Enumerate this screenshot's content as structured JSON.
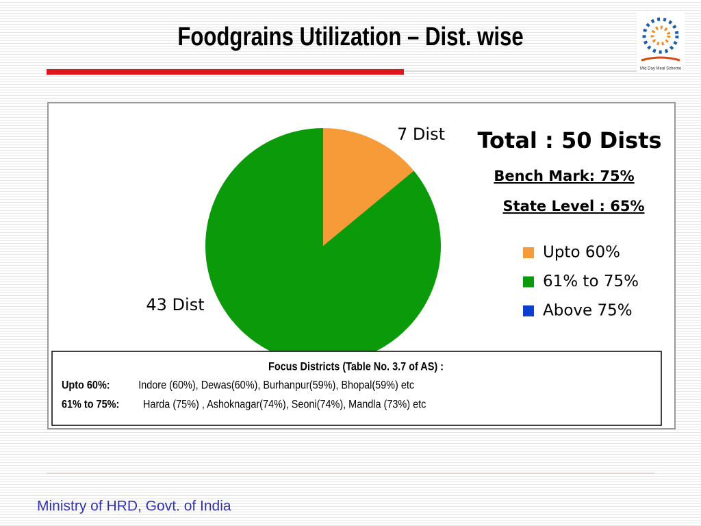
{
  "slide": {
    "title": "Foodgrains Utilization – Dist. wise",
    "logo_text": "Mid Day Meal Scheme",
    "footer": "Ministry of HRD, Govt. of India"
  },
  "chart_data": {
    "type": "pie",
    "categories": [
      "Upto  60%",
      "61% to 75%",
      "Above 75%"
    ],
    "values": [
      7,
      43,
      0
    ],
    "value_labels": [
      "7 Dist",
      "43 Dist",
      null
    ],
    "colors": [
      "#f79a38",
      "#0a9a0a",
      "#0b3fd1"
    ],
    "annotations": [
      "Total : 50 Dists",
      "Bench Mark: 75%",
      "State Level : 65%"
    ]
  },
  "focus_box": {
    "heading": "Focus Districts (Table No. 3.7 of AS) :",
    "rows": [
      {
        "label": "Upto  60%:",
        "text": "Indore (60%), Dewas(60%), Burhanpur(59%), Bhopal(59%) etc"
      },
      {
        "label": "61% to 75%:",
        "text": "Harda (75%) ,  Ashoknagar(74%), Seoni(74%), Mandla (73%) etc"
      }
    ]
  }
}
